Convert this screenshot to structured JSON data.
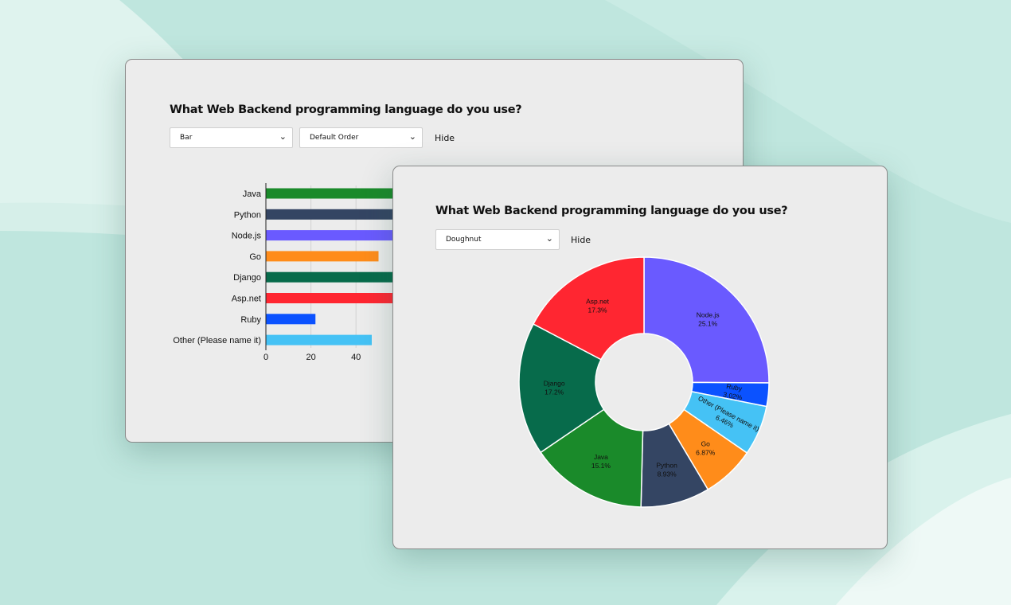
{
  "palette": {
    "Java": "#1a8a2a",
    "Python": "#344563",
    "Node.js": "#6a5aff",
    "Go": "#ff8c1a",
    "Django": "#076b4b",
    "Asp.net": "#ff2631",
    "Ruby": "#0b52ff",
    "Other (Please name it)": "#45c2f5"
  },
  "back_card": {
    "title": "What Web Backend programming language do you use?",
    "chart_type_select": "Bar",
    "order_select": "Default Order",
    "hide_label": "Hide",
    "chevron_icon": "chevron-down-icon"
  },
  "front_card": {
    "title": "What Web Backend programming language do you use?",
    "chart_type_select": "Doughnut",
    "hide_label": "Hide",
    "chevron_icon": "chevron-down-icon"
  },
  "chart_data": [
    {
      "type": "bar",
      "orientation": "horizontal",
      "categories": [
        "Java",
        "Python",
        "Node.js",
        "Go",
        "Django",
        "Asp.net",
        "Ruby",
        "Other (Please name it)"
      ],
      "values": [
        null,
        null,
        null,
        50,
        null,
        null,
        22,
        47
      ],
      "x_ticks": [
        "0",
        "20",
        "40"
      ],
      "grid": true,
      "note_values": "bars for Java, Python, Node.js, Django and Asp.net extend behind the overlapping card"
    },
    {
      "type": "pie",
      "variant": "doughnut",
      "slices": [
        {
          "label": "Node.js",
          "value_label": "25.1%",
          "value": 25.1
        },
        {
          "label": "Ruby",
          "value_label": "3.02%",
          "value": 3.02
        },
        {
          "label": "Other (Please name it)",
          "value_label": "6.46%",
          "value": 6.46
        },
        {
          "label": "Go",
          "value_label": "6.87%",
          "value": 6.87
        },
        {
          "label": "Python",
          "value_label": "8.93%",
          "value": 8.93
        },
        {
          "label": "Java",
          "value_label": "15.1%",
          "value": 15.1
        },
        {
          "label": "Django",
          "value_label": "17.2%",
          "value": 17.2
        },
        {
          "label": "Asp.net",
          "value_label": "17.3%",
          "value": 17.3
        }
      ]
    }
  ]
}
